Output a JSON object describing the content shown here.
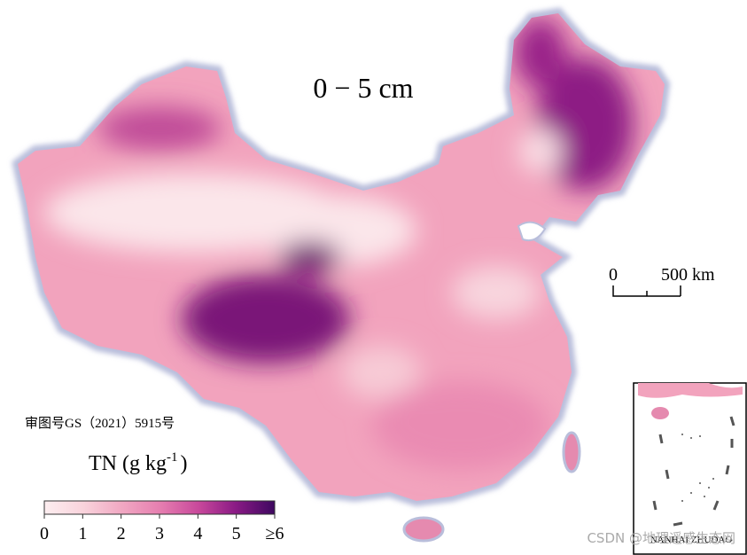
{
  "map": {
    "title": "0 − 5 cm",
    "scale_bar": {
      "start": "0",
      "end": "500 km"
    },
    "approval": "审图号GS（2021）5915号",
    "legend": {
      "title": "TN (g kg",
      "title_sup": "-1",
      "title_close": ")",
      "ticks": [
        0,
        1,
        2,
        3,
        4,
        5,
        "≥6"
      ]
    },
    "inset_label": "NANHAI ZHUDAO"
  },
  "watermark": "CSDN @地理遥感生态网"
}
